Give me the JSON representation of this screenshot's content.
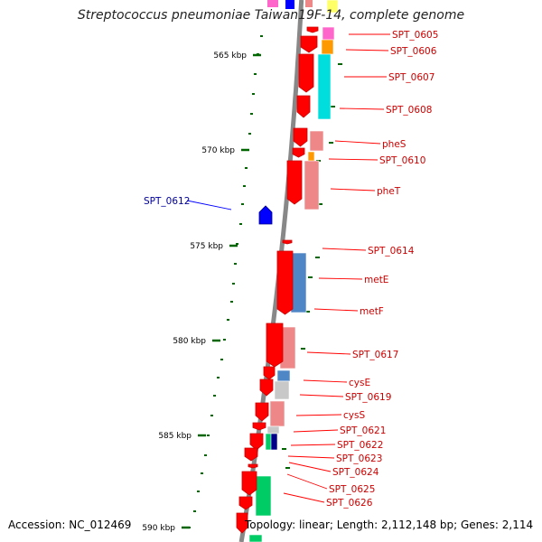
{
  "title": "Streptococcus pneumoniae Taiwan19F-14, complete genome",
  "footer": {
    "accession": "Accession: NC_012469",
    "topology": "Topology: linear; Length: 2,112,148 bp; Genes: 2,114"
  },
  "colors": {
    "gene_forward": "#ff0000",
    "gene_reverse": "#0000ff",
    "forward_label": "#cc0000",
    "reverse_label": "#000099",
    "backbone": "#888888",
    "tick": "#006600",
    "cog_orange": "#ff9900",
    "cog_cyan": "#00dddd",
    "cog_pink": "#ee8888",
    "cog_steel": "#4f86c6",
    "cog_gray": "#c8c8c8",
    "cog_green": "#00cc66",
    "cog_navy": "#000088",
    "cog_magenta": "#ff66cc",
    "cog_yellow": "#ffff66"
  },
  "scale_labels": [
    "565 kbp",
    "570 kbp",
    "575 kbp",
    "580 kbp",
    "585 kbp",
    "590 kbp"
  ],
  "genes": [
    {
      "name": "SPT_0605",
      "strand": "forward"
    },
    {
      "name": "SPT_0606",
      "strand": "forward"
    },
    {
      "name": "SPT_0607",
      "strand": "forward"
    },
    {
      "name": "SPT_0608",
      "strand": "forward"
    },
    {
      "name": "pheS",
      "strand": "forward"
    },
    {
      "name": "SPT_0610",
      "strand": "forward"
    },
    {
      "name": "pheT",
      "strand": "forward"
    },
    {
      "name": "SPT_0612",
      "strand": "reverse"
    },
    {
      "name": "SPT_0614",
      "strand": "forward"
    },
    {
      "name": "metE",
      "strand": "forward"
    },
    {
      "name": "metF",
      "strand": "forward"
    },
    {
      "name": "SPT_0617",
      "strand": "forward"
    },
    {
      "name": "cysE",
      "strand": "forward"
    },
    {
      "name": "SPT_0619",
      "strand": "forward"
    },
    {
      "name": "cysS",
      "strand": "forward"
    },
    {
      "name": "SPT_0621",
      "strand": "forward"
    },
    {
      "name": "SPT_0622",
      "strand": "forward"
    },
    {
      "name": "SPT_0623",
      "strand": "forward"
    },
    {
      "name": "SPT_0624",
      "strand": "forward"
    },
    {
      "name": "SPT_0625",
      "strand": "forward"
    },
    {
      "name": "SPT_0626",
      "strand": "forward"
    }
  ]
}
